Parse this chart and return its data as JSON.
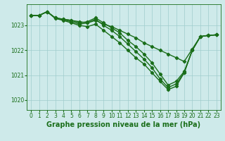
{
  "xlabel": "Graphe pression niveau de la mer (hPa)",
  "xlim": [
    -0.5,
    23.5
  ],
  "ylim": [
    1019.6,
    1023.85
  ],
  "yticks": [
    1020,
    1021,
    1022,
    1023
  ],
  "xticks": [
    0,
    1,
    2,
    3,
    4,
    5,
    6,
    7,
    8,
    9,
    10,
    11,
    12,
    13,
    14,
    15,
    16,
    17,
    18,
    19,
    20,
    21,
    22,
    23
  ],
  "bg_color": "#ceeaea",
  "grid_color": "#a0cccc",
  "line_color": "#1a6e1a",
  "curves": [
    {
      "x": [
        0,
        1,
        2,
        3,
        4,
        5,
        6,
        7,
        8,
        9,
        10,
        11,
        12,
        13,
        14,
        15,
        16,
        17,
        18,
        19,
        20,
        21,
        22,
        23
      ],
      "y": [
        1023.4,
        1023.4,
        1023.55,
        1023.3,
        1023.25,
        1023.2,
        1023.15,
        1023.1,
        1023.2,
        1023.05,
        1022.95,
        1022.8,
        1022.65,
        1022.5,
        1022.3,
        1022.15,
        1022.0,
        1021.85,
        1021.7,
        1021.55,
        1022.05,
        1022.55,
        1022.6,
        1022.62
      ]
    },
    {
      "x": [
        0,
        1,
        2,
        3,
        4,
        5,
        6,
        7,
        8,
        9,
        10,
        11,
        12,
        13,
        14,
        15,
        16,
        17,
        18,
        19,
        20,
        21,
        22,
        23
      ],
      "y": [
        1023.4,
        1023.4,
        1023.55,
        1023.28,
        1023.2,
        1023.1,
        1023.0,
        1022.95,
        1023.05,
        1022.8,
        1022.55,
        1022.3,
        1022.0,
        1021.7,
        1021.45,
        1021.1,
        1020.75,
        1020.42,
        1020.55,
        1021.1,
        1022.0,
        1022.55,
        1022.6,
        1022.62
      ]
    },
    {
      "x": [
        0,
        1,
        2,
        3,
        4,
        5,
        6,
        7,
        8,
        9,
        10,
        11,
        12,
        13,
        14,
        15,
        16,
        17,
        18,
        19,
        20,
        21,
        22,
        23
      ],
      "y": [
        1023.4,
        1023.4,
        1023.55,
        1023.3,
        1023.22,
        1023.15,
        1023.05,
        1023.1,
        1023.25,
        1023.0,
        1022.8,
        1022.55,
        1022.25,
        1021.95,
        1021.65,
        1021.3,
        1020.85,
        1020.5,
        1020.65,
        1021.1,
        1022.0,
        1022.55,
        1022.6,
        1022.62
      ]
    },
    {
      "x": [
        0,
        1,
        2,
        3,
        4,
        5,
        6,
        7,
        8,
        9,
        10,
        11,
        12,
        13,
        14,
        15,
        16,
        17,
        18,
        19,
        20,
        21,
        22,
        23
      ],
      "y": [
        1023.4,
        1023.4,
        1023.55,
        1023.3,
        1023.25,
        1023.2,
        1023.1,
        1023.15,
        1023.3,
        1023.1,
        1022.9,
        1022.7,
        1022.4,
        1022.15,
        1021.85,
        1021.5,
        1021.05,
        1020.6,
        1020.75,
        1021.15,
        1022.0,
        1022.55,
        1022.6,
        1022.62
      ]
    }
  ],
  "marker": "D",
  "markersize": 2.2,
  "linewidth": 1.0,
  "tick_color": "#1a6e1a",
  "tick_fontsize": 5.5,
  "label_fontsize": 7.0,
  "label_fontweight": "bold"
}
